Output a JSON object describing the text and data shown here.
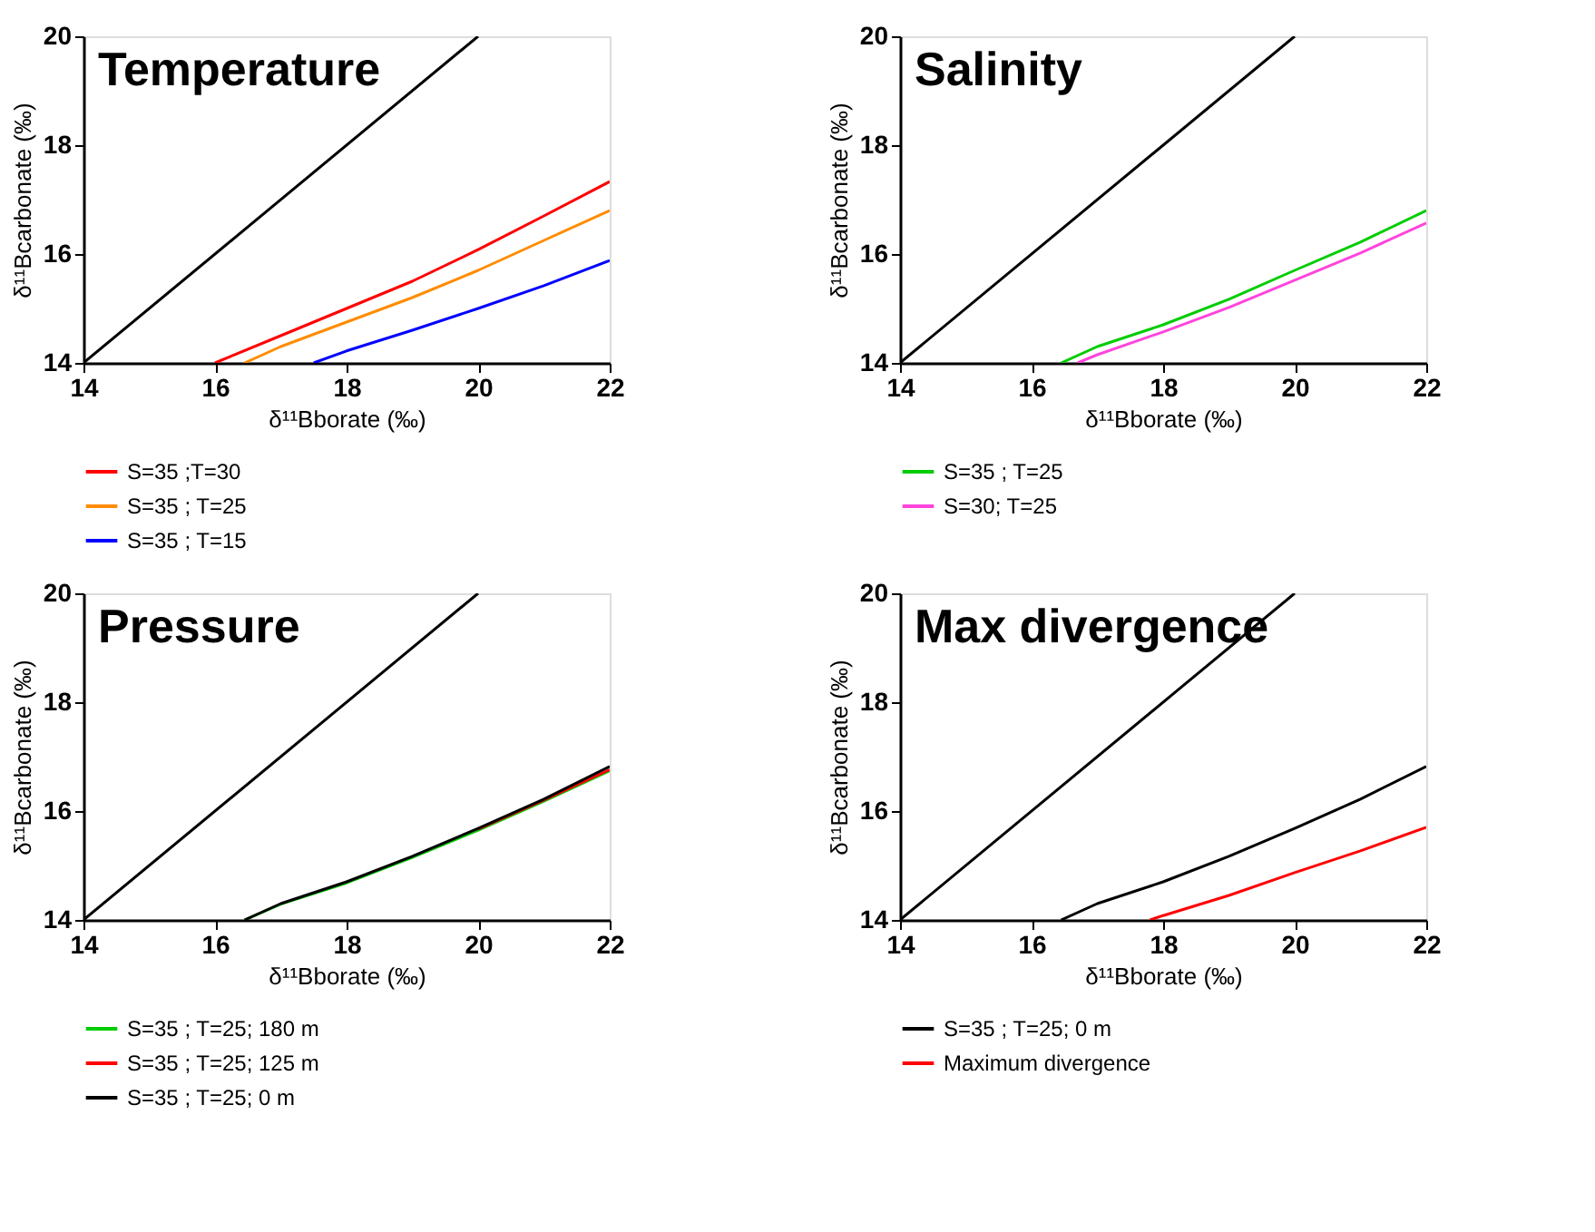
{
  "chart_data": [
    {
      "type": "line",
      "line_style": "solid",
      "title": "Temperature",
      "xlabel": "δ¹¹Bborate (‰)",
      "ylabel": "δ¹¹Bcarbonate (‰)",
      "xlim": [
        14,
        22
      ],
      "ylim": [
        14,
        20
      ],
      "xticks": [
        14,
        16,
        18,
        20,
        22
      ],
      "yticks": [
        14,
        16,
        18,
        20
      ],
      "legend": "bottom",
      "series": [
        {
          "color": "#000000",
          "x": [
            14,
            20
          ],
          "values": [
            14,
            20
          ]
        },
        {
          "name": "S=35 ;T=30",
          "color": "#ff0000",
          "x": [
            16,
            17,
            18,
            19,
            20,
            21,
            22
          ],
          "values": [
            14,
            14.5,
            15.0,
            15.5,
            16.08,
            16.7,
            17.33
          ]
        },
        {
          "name": "S=35 ; T=25",
          "color": "#ff8c00",
          "x": [
            16.45,
            17,
            18,
            19,
            20,
            21,
            22
          ],
          "values": [
            14,
            14.3,
            14.75,
            15.2,
            15.7,
            16.25,
            16.8
          ]
        },
        {
          "name": "S=35 ; T=15",
          "color": "#0000ff",
          "x": [
            17.5,
            18,
            19,
            20,
            21,
            22
          ],
          "values": [
            14,
            14.22,
            14.6,
            15.0,
            15.42,
            15.88
          ]
        }
      ]
    },
    {
      "type": "line",
      "line_style": "solid",
      "title": "Salinity",
      "xlabel": "δ¹¹Bborate (‰)",
      "ylabel": "δ¹¹Bcarbonate (‰)",
      "xlim": [
        14,
        22
      ],
      "ylim": [
        14,
        20
      ],
      "xticks": [
        14,
        16,
        18,
        20,
        22
      ],
      "yticks": [
        14,
        16,
        18,
        20
      ],
      "legend": "bottom",
      "series": [
        {
          "color": "#000000",
          "x": [
            14,
            20
          ],
          "values": [
            14,
            20
          ]
        },
        {
          "name": "S=35 ; T=25",
          "color": "#00cc00",
          "x": [
            16.45,
            17,
            18,
            19,
            20,
            21,
            22
          ],
          "values": [
            14,
            14.3,
            14.7,
            15.17,
            15.7,
            16.22,
            16.8
          ]
        },
        {
          "name": "S=30; T=25",
          "color": "#ff44dd",
          "x": [
            16.7,
            17,
            18,
            19,
            20,
            21,
            22
          ],
          "values": [
            14,
            14.15,
            14.57,
            15.02,
            15.52,
            16.02,
            16.57
          ]
        }
      ]
    },
    {
      "type": "line",
      "line_style": "solid",
      "title": "Pressure",
      "xlabel": "δ¹¹Bborate (‰)",
      "ylabel": "δ¹¹Bcarbonate (‰)",
      "xlim": [
        14,
        22
      ],
      "ylim": [
        14,
        20
      ],
      "xticks": [
        14,
        16,
        18,
        20,
        22
      ],
      "yticks": [
        14,
        16,
        18,
        20
      ],
      "legend": "bottom",
      "series": [
        {
          "color": "#000000",
          "x": [
            14,
            20
          ],
          "values": [
            14,
            20
          ]
        },
        {
          "name": "S=35 ; T=25; 180 m",
          "color": "#00cc00",
          "x": [
            16.45,
            17,
            18,
            19,
            20,
            21,
            22
          ],
          "values": [
            14,
            14.29,
            14.68,
            15.15,
            15.65,
            16.18,
            16.74
          ]
        },
        {
          "name": "S=35 ; T=25; 125 m",
          "color": "#ff0000",
          "x": [
            20,
            21,
            22
          ],
          "values": [
            15.67,
            16.2,
            16.76
          ]
        },
        {
          "name": "S=35 ; T=25; 0 m",
          "color": "#000000",
          "x": [
            16.45,
            17,
            18,
            19,
            20,
            21,
            22
          ],
          "values": [
            14,
            14.3,
            14.7,
            15.17,
            15.68,
            16.22,
            16.82
          ]
        }
      ]
    },
    {
      "type": "line",
      "line_style": "solid",
      "title": "Max divergence",
      "xlabel": "δ¹¹Bborate (‰)",
      "ylabel": "δ¹¹Bcarbonate (‰)",
      "xlim": [
        14,
        22
      ],
      "ylim": [
        14,
        20
      ],
      "xticks": [
        14,
        16,
        18,
        20,
        22
      ],
      "yticks": [
        14,
        16,
        18,
        20
      ],
      "legend": "bottom",
      "series": [
        {
          "color": "#000000",
          "x": [
            14,
            20
          ],
          "values": [
            14,
            20
          ]
        },
        {
          "name": "S=35 ; T=25; 0 m",
          "color": "#000000",
          "x": [
            16.45,
            17,
            18,
            19,
            20,
            21,
            22
          ],
          "values": [
            14,
            14.3,
            14.7,
            15.17,
            15.68,
            16.22,
            16.82
          ]
        },
        {
          "name": "Maximum divergence",
          "color": "#ff0000",
          "x": [
            17.8,
            18,
            19,
            20,
            21,
            22
          ],
          "values": [
            14,
            14.08,
            14.45,
            14.87,
            15.27,
            15.7
          ]
        }
      ]
    }
  ]
}
